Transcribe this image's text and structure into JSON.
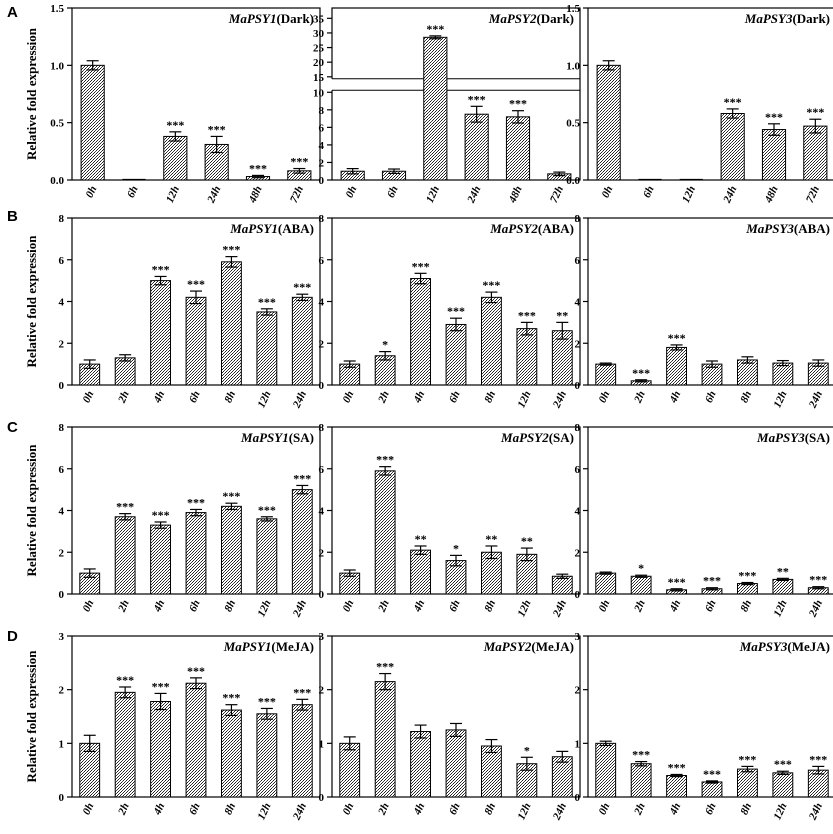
{
  "figure": {
    "ylabel": "Relative fold expression",
    "rows": [
      {
        "letter": "A",
        "panels": [
          {
            "gene": "MaPSY1",
            "condition": "(Dark)",
            "yticks": [
              "0.0",
              "0.5",
              "1.0",
              "1.5"
            ],
            "ymax": 1.5,
            "categories": [
              "0h",
              "6h",
              "12h",
              "24h",
              "48h",
              "72h"
            ],
            "values": [
              1.0,
              0.0,
              0.38,
              0.31,
              0.03,
              0.08
            ],
            "errors": [
              0.04,
              0.0,
              0.04,
              0.07,
              0.01,
              0.02
            ],
            "stars": [
              "",
              "",
              "***",
              "***",
              "***",
              "***"
            ]
          },
          {
            "gene": "MaPSY2",
            "condition": "(Dark)",
            "broken": true,
            "yticks": [
              "0",
              "2",
              "4",
              "6",
              "8",
              "10",
              "15",
              "20",
              "25",
              "30",
              "35"
            ],
            "categories": [
              "0h",
              "6h",
              "12h",
              "24h",
              "48h",
              "72h"
            ],
            "values": [
              1.0,
              1.0,
              28.5,
              7.5,
              7.2,
              0.7
            ],
            "errors": [
              0.3,
              0.25,
              0.5,
              0.9,
              0.7,
              0.2
            ],
            "stars": [
              "",
              "",
              "***",
              "***",
              "***",
              ""
            ]
          },
          {
            "gene": "MaPSY3",
            "condition": "(Dark)",
            "yticks": [
              "0.0",
              "0.5",
              "1.0",
              "1.5"
            ],
            "ymax": 1.5,
            "categories": [
              "0h",
              "6h",
              "12h",
              "24h",
              "48h",
              "72h"
            ],
            "values": [
              1.0,
              0.0,
              0.0,
              0.58,
              0.44,
              0.47
            ],
            "errors": [
              0.04,
              0.0,
              0.0,
              0.04,
              0.05,
              0.06
            ],
            "stars": [
              "",
              "",
              "",
              "***",
              "***",
              "***"
            ]
          }
        ]
      },
      {
        "letter": "B",
        "panels": [
          {
            "gene": "MaPSY1",
            "condition": "(ABA)",
            "yticks": [
              "0",
              "2",
              "4",
              "6",
              "8"
            ],
            "ymax": 8,
            "categories": [
              "0h",
              "2h",
              "4h",
              "6h",
              "8h",
              "12h",
              "24h"
            ],
            "values": [
              1.0,
              1.3,
              5.0,
              4.2,
              5.9,
              3.5,
              4.2
            ],
            "errors": [
              0.2,
              0.15,
              0.2,
              0.3,
              0.25,
              0.15,
              0.15
            ],
            "stars": [
              "",
              "",
              "***",
              "***",
              "***",
              "***",
              "***"
            ]
          },
          {
            "gene": "MaPSY2",
            "condition": "(ABA)",
            "yticks": [
              "0",
              "2",
              "4",
              "6",
              "8"
            ],
            "ymax": 8,
            "categories": [
              "0h",
              "2h",
              "4h",
              "6h",
              "8h",
              "12h",
              "24h"
            ],
            "values": [
              1.0,
              1.4,
              5.1,
              2.9,
              4.2,
              2.7,
              2.6
            ],
            "errors": [
              0.15,
              0.2,
              0.25,
              0.3,
              0.25,
              0.3,
              0.4
            ],
            "stars": [
              "",
              "*",
              "***",
              "***",
              "***",
              "***",
              "**"
            ]
          },
          {
            "gene": "MaPSY3",
            "condition": "(ABA)",
            "yticks": [
              "0",
              "2",
              "4",
              "6",
              "8"
            ],
            "ymax": 8,
            "categories": [
              "0h",
              "2h",
              "4h",
              "6h",
              "8h",
              "12h",
              "24h"
            ],
            "values": [
              1.0,
              0.2,
              1.8,
              1.0,
              1.2,
              1.05,
              1.05
            ],
            "errors": [
              0.05,
              0.05,
              0.12,
              0.15,
              0.15,
              0.12,
              0.15
            ],
            "stars": [
              "",
              "***",
              "***",
              "",
              "",
              "",
              ""
            ]
          }
        ]
      },
      {
        "letter": "C",
        "panels": [
          {
            "gene": "MaPSY1",
            "condition": "(SA)",
            "yticks": [
              "0",
              "2",
              "4",
              "6",
              "8"
            ],
            "ymax": 8,
            "categories": [
              "0h",
              "2h",
              "4h",
              "6h",
              "8h",
              "12h",
              "24h"
            ],
            "values": [
              1.0,
              3.7,
              3.3,
              3.9,
              4.2,
              3.6,
              5.0
            ],
            "errors": [
              0.2,
              0.15,
              0.15,
              0.15,
              0.15,
              0.1,
              0.2
            ],
            "stars": [
              "",
              "***",
              "***",
              "***",
              "***",
              "***",
              "***"
            ]
          },
          {
            "gene": "MaPSY2",
            "condition": "(SA)",
            "yticks": [
              "0",
              "2",
              "4",
              "6",
              "8"
            ],
            "ymax": 8,
            "categories": [
              "0h",
              "2h",
              "4h",
              "6h",
              "8h",
              "12h",
              "24h"
            ],
            "values": [
              1.0,
              5.9,
              2.1,
              1.6,
              2.0,
              1.9,
              0.85
            ],
            "errors": [
              0.15,
              0.2,
              0.2,
              0.25,
              0.3,
              0.3,
              0.1
            ],
            "stars": [
              "",
              "***",
              "**",
              "*",
              "**",
              "**",
              ""
            ]
          },
          {
            "gene": "MaPSY3",
            "condition": "(SA)",
            "yticks": [
              "0",
              "2",
              "4",
              "6",
              "8"
            ],
            "ymax": 8,
            "categories": [
              "0h",
              "2h",
              "4h",
              "6h",
              "8h",
              "12h",
              "24h"
            ],
            "values": [
              1.0,
              0.85,
              0.2,
              0.25,
              0.5,
              0.7,
              0.3
            ],
            "errors": [
              0.05,
              0.05,
              0.05,
              0.05,
              0.05,
              0.05,
              0.05
            ],
            "stars": [
              "",
              "*",
              "***",
              "***",
              "***",
              "**",
              "***"
            ]
          }
        ]
      },
      {
        "letter": "D",
        "panels": [
          {
            "gene": "MaPSY1",
            "condition": "(MeJA)",
            "yticks": [
              "0",
              "1",
              "2",
              "3"
            ],
            "ymax": 3,
            "categories": [
              "0h",
              "2h",
              "4h",
              "6h",
              "8h",
              "12h",
              "24h"
            ],
            "values": [
              1.0,
              1.95,
              1.78,
              2.12,
              1.62,
              1.55,
              1.72
            ],
            "errors": [
              0.15,
              0.1,
              0.15,
              0.1,
              0.1,
              0.1,
              0.1
            ],
            "stars": [
              "",
              "***",
              "***",
              "***",
              "***",
              "***",
              "***"
            ]
          },
          {
            "gene": "MaPSY2",
            "condition": "(MeJA)",
            "yticks": [
              "0",
              "1",
              "2",
              "3"
            ],
            "ymax": 3,
            "categories": [
              "0h",
              "2h",
              "4h",
              "6h",
              "8h",
              "12h",
              "24h"
            ],
            "values": [
              1.0,
              2.15,
              1.22,
              1.25,
              0.95,
              0.62,
              0.75
            ],
            "errors": [
              0.12,
              0.15,
              0.12,
              0.12,
              0.12,
              0.12,
              0.1
            ],
            "stars": [
              "",
              "***",
              "",
              "",
              "",
              "*",
              ""
            ]
          },
          {
            "gene": "MaPSY3",
            "condition": "(MeJA)",
            "yticks": [
              "0",
              "1",
              "2",
              "3"
            ],
            "ymax": 3,
            "categories": [
              "0h",
              "2h",
              "4h",
              "6h",
              "8h",
              "12h",
              "24h"
            ],
            "values": [
              1.0,
              0.62,
              0.4,
              0.28,
              0.52,
              0.45,
              0.5
            ],
            "errors": [
              0.04,
              0.04,
              0.02,
              0.02,
              0.05,
              0.03,
              0.07
            ],
            "stars": [
              "",
              "***",
              "***",
              "***",
              "***",
              "***",
              "***"
            ]
          }
        ]
      }
    ]
  },
  "chart_data": [
    {
      "type": "bar",
      "title": "MaPSY1(Dark)",
      "ylabel": "Relative fold expression",
      "ylim": [
        0,
        1.5
      ],
      "categories": [
        "0h",
        "6h",
        "12h",
        "24h",
        "48h",
        "72h"
      ],
      "values": [
        1.0,
        0.0,
        0.38,
        0.31,
        0.03,
        0.08
      ]
    },
    {
      "type": "bar",
      "title": "MaPSY2(Dark)",
      "ylabel": "",
      "ylim": [
        0,
        35
      ],
      "categories": [
        "0h",
        "6h",
        "12h",
        "24h",
        "48h",
        "72h"
      ],
      "values": [
        1.0,
        1.0,
        28.5,
        7.5,
        7.2,
        0.7
      ]
    },
    {
      "type": "bar",
      "title": "MaPSY3(Dark)",
      "ylabel": "",
      "ylim": [
        0,
        1.5
      ],
      "categories": [
        "0h",
        "6h",
        "12h",
        "24h",
        "48h",
        "72h"
      ],
      "values": [
        1.0,
        0.0,
        0.0,
        0.58,
        0.44,
        0.47
      ]
    },
    {
      "type": "bar",
      "title": "MaPSY1(ABA)",
      "ylabel": "Relative fold expression",
      "ylim": [
        0,
        8
      ],
      "categories": [
        "0h",
        "2h",
        "4h",
        "6h",
        "8h",
        "12h",
        "24h"
      ],
      "values": [
        1.0,
        1.3,
        5.0,
        4.2,
        5.9,
        3.5,
        4.2
      ]
    },
    {
      "type": "bar",
      "title": "MaPSY2(ABA)",
      "ylabel": "",
      "ylim": [
        0,
        8
      ],
      "categories": [
        "0h",
        "2h",
        "4h",
        "6h",
        "8h",
        "12h",
        "24h"
      ],
      "values": [
        1.0,
        1.4,
        5.1,
        2.9,
        4.2,
        2.7,
        2.6
      ]
    },
    {
      "type": "bar",
      "title": "MaPSY3(ABA)",
      "ylabel": "",
      "ylim": [
        0,
        8
      ],
      "categories": [
        "0h",
        "2h",
        "4h",
        "6h",
        "8h",
        "12h",
        "24h"
      ],
      "values": [
        1.0,
        0.2,
        1.8,
        1.0,
        1.2,
        1.05,
        1.05
      ]
    },
    {
      "type": "bar",
      "title": "MaPSY1(SA)",
      "ylabel": "Relative fold expression",
      "ylim": [
        0,
        8
      ],
      "categories": [
        "0h",
        "2h",
        "4h",
        "6h",
        "8h",
        "12h",
        "24h"
      ],
      "values": [
        1.0,
        3.7,
        3.3,
        3.9,
        4.2,
        3.6,
        5.0
      ]
    },
    {
      "type": "bar",
      "title": "MaPSY2(SA)",
      "ylabel": "",
      "ylim": [
        0,
        8
      ],
      "categories": [
        "0h",
        "2h",
        "4h",
        "6h",
        "8h",
        "12h",
        "24h"
      ],
      "values": [
        1.0,
        5.9,
        2.1,
        1.6,
        2.0,
        1.9,
        0.85
      ]
    },
    {
      "type": "bar",
      "title": "MaPSY3(SA)",
      "ylabel": "",
      "ylim": [
        0,
        8
      ],
      "categories": [
        "0h",
        "2h",
        "4h",
        "6h",
        "8h",
        "12h",
        "24h"
      ],
      "values": [
        1.0,
        0.85,
        0.2,
        0.25,
        0.5,
        0.7,
        0.3
      ]
    },
    {
      "type": "bar",
      "title": "MaPSY1(MeJA)",
      "ylabel": "Relative fold expression",
      "ylim": [
        0,
        3
      ],
      "categories": [
        "0h",
        "2h",
        "4h",
        "6h",
        "8h",
        "12h",
        "24h"
      ],
      "values": [
        1.0,
        1.95,
        1.78,
        2.12,
        1.62,
        1.55,
        1.72
      ]
    },
    {
      "type": "bar",
      "title": "MaPSY2(MeJA)",
      "ylabel": "",
      "ylim": [
        0,
        3
      ],
      "categories": [
        "0h",
        "2h",
        "4h",
        "6h",
        "8h",
        "12h",
        "24h"
      ],
      "values": [
        1.0,
        2.15,
        1.22,
        1.25,
        0.95,
        0.62,
        0.75
      ]
    },
    {
      "type": "bar",
      "title": "MaPSY3(MeJA)",
      "ylabel": "",
      "ylim": [
        0,
        3
      ],
      "categories": [
        "0h",
        "2h",
        "4h",
        "6h",
        "8h",
        "12h",
        "24h"
      ],
      "values": [
        1.0,
        0.62,
        0.4,
        0.28,
        0.52,
        0.45,
        0.5
      ]
    }
  ]
}
